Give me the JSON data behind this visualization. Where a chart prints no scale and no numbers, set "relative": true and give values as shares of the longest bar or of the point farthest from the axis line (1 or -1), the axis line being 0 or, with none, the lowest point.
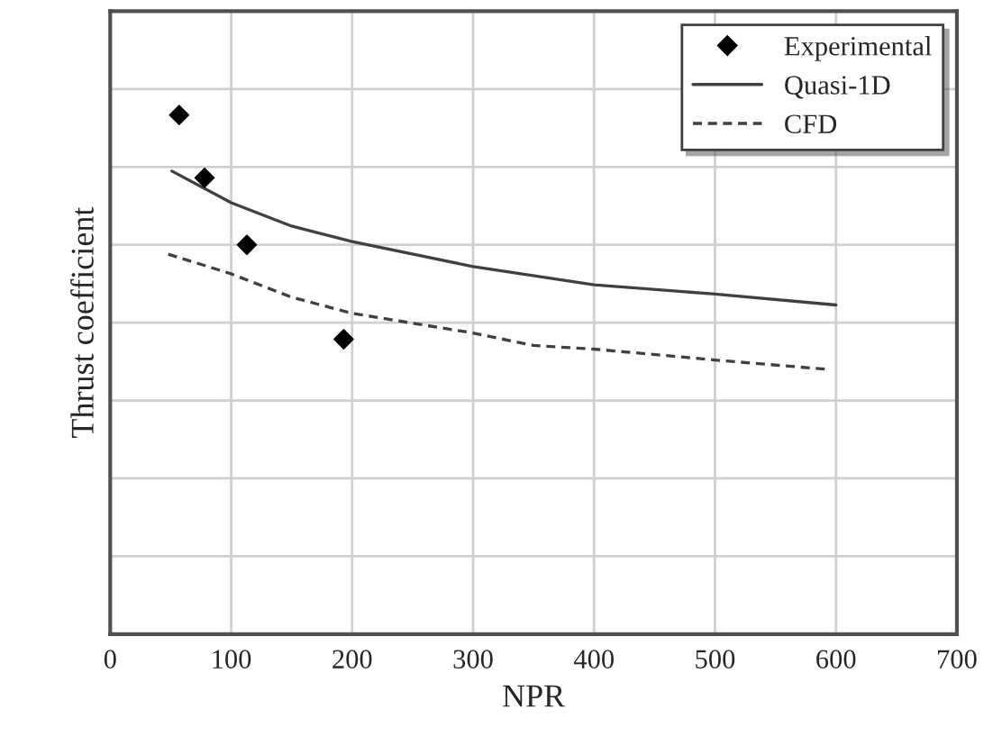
{
  "chart_data": {
    "type": "line",
    "xlabel": "NPR",
    "ylabel": "Thrust coefficient",
    "relative": true,
    "xlim": [
      0,
      700
    ],
    "xticks": [
      0,
      100,
      200,
      300,
      400,
      500,
      600,
      700
    ],
    "tick_labels": "x",
    "grid": true,
    "legend": "top right",
    "series": [
      {
        "name": "Experimental",
        "type": "scatter",
        "marker": "diamond",
        "color": "#000000",
        "x": [
          57,
          78,
          113,
          193
        ],
        "values": [
          1.0,
          0.879,
          0.75,
          0.568
        ]
      },
      {
        "name": "Quasi-1D",
        "line_style": "solid",
        "color": "#404040",
        "x": [
          51,
          100,
          150,
          200,
          300,
          400,
          500,
          600
        ],
        "values": [
          0.892,
          0.831,
          0.786,
          0.756,
          0.708,
          0.673,
          0.655,
          0.634
        ]
      },
      {
        "name": "CFD",
        "line_style": "dashed",
        "color": "#404040",
        "x": [
          48,
          100,
          150,
          200,
          300,
          350,
          400,
          500,
          593
        ],
        "values": [
          0.732,
          0.694,
          0.649,
          0.618,
          0.58,
          0.556,
          0.549,
          0.528,
          0.51
        ]
      }
    ]
  }
}
